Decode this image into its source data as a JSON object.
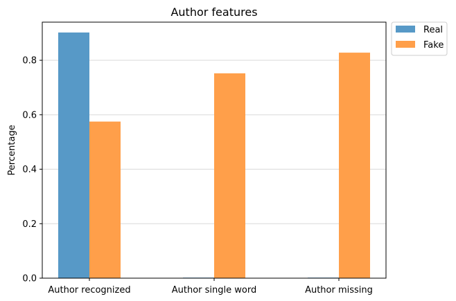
{
  "chart_data": {
    "type": "bar",
    "title": "Author features",
    "xlabel": "",
    "ylabel": "Percentage",
    "categories": [
      "Author recognized",
      "Author single word",
      "Author missing"
    ],
    "series": [
      {
        "name": "Real",
        "color": "#5799c7",
        "values": [
          0.902,
          0.002,
          0.002
        ]
      },
      {
        "name": "Fake",
        "color": "#ff9f4a",
        "values": [
          0.575,
          0.752,
          0.828
        ]
      }
    ],
    "ylim": [
      0,
      0.94
    ],
    "yticks": [
      0.0,
      0.2,
      0.4,
      0.6,
      0.8
    ],
    "ytick_labels": [
      "0.0",
      "0.2",
      "0.4",
      "0.6",
      "0.8"
    ],
    "grid": "horizontal",
    "legend_position": "outside-top-right"
  }
}
